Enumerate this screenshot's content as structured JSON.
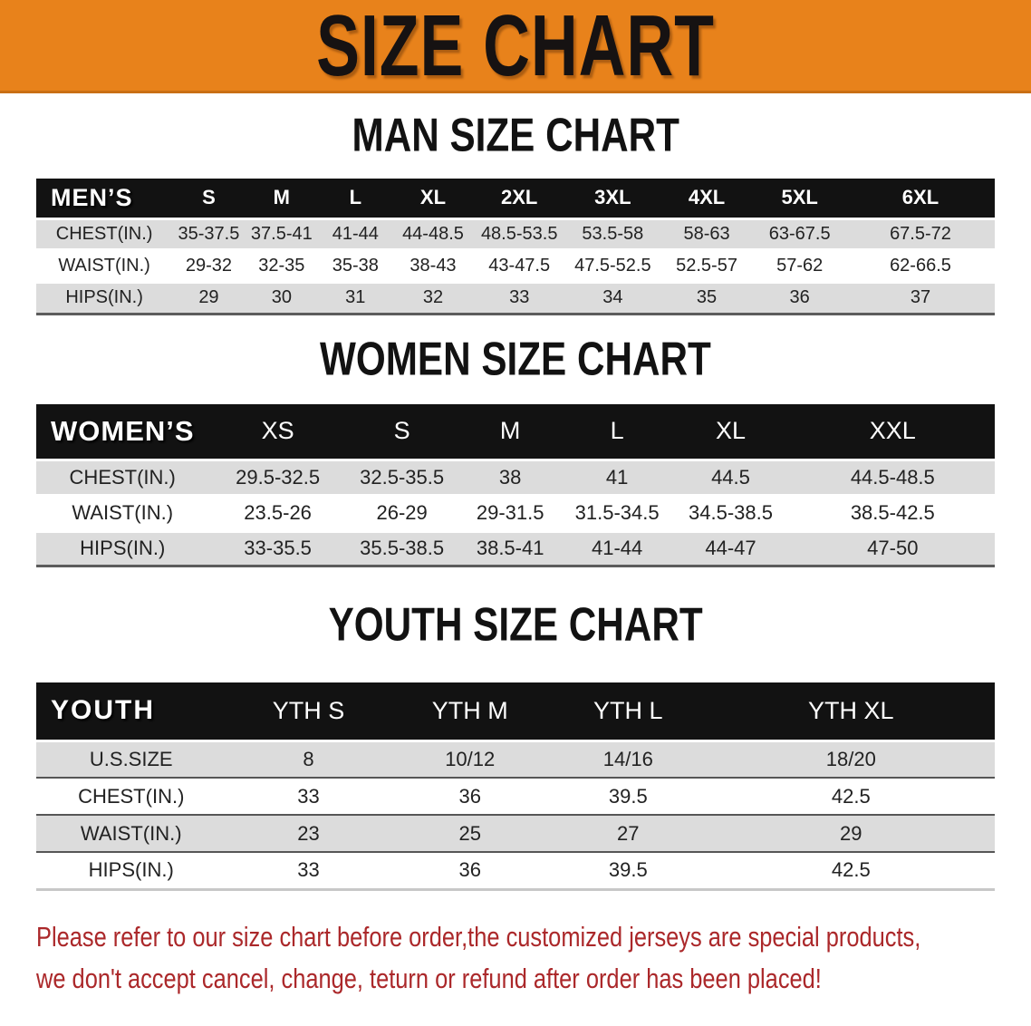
{
  "banner": {
    "title": "SIZE CHART"
  },
  "sections": [
    {
      "heading": "MAN SIZE CHART",
      "corner_label": "MEN’S",
      "columns": [
        "S",
        "M",
        "L",
        "XL",
        "2XL",
        "3XL",
        "4XL",
        "5XL",
        "6XL"
      ],
      "rows": [
        {
          "label": "CHEST(IN.)",
          "values": [
            "35-37.5",
            "37.5-41",
            "41-44",
            "44-48.5",
            "48.5-53.5",
            "53.5-58",
            "58-63",
            "63-67.5",
            "67.5-72"
          ]
        },
        {
          "label": "WAIST(IN.)",
          "values": [
            "29-32",
            "32-35",
            "35-38",
            "38-43",
            "43-47.5",
            "47.5-52.5",
            "52.5-57",
            "57-62",
            "62-66.5"
          ]
        },
        {
          "label": "HIPS(IN.)",
          "values": [
            "29",
            "30",
            "31",
            "32",
            "33",
            "34",
            "35",
            "36",
            "37"
          ]
        }
      ]
    },
    {
      "heading": "WOMEN SIZE CHART",
      "corner_label": "WOMEN’S",
      "columns": [
        "XS",
        "S",
        "M",
        "L",
        "XL",
        "XXL"
      ],
      "rows": [
        {
          "label": "CHEST(IN.)",
          "values": [
            "29.5-32.5",
            "32.5-35.5",
            "38",
            "41",
            "44.5",
            "44.5-48.5"
          ]
        },
        {
          "label": "WAIST(IN.)",
          "values": [
            "23.5-26",
            "26-29",
            "29-31.5",
            "31.5-34.5",
            "34.5-38.5",
            "38.5-42.5"
          ]
        },
        {
          "label": "HIPS(IN.)",
          "values": [
            "33-35.5",
            "35.5-38.5",
            "38.5-41",
            "41-44",
            "44-47",
            "47-50"
          ]
        }
      ]
    },
    {
      "heading": "YOUTH SIZE CHART",
      "corner_label": "YOUTH",
      "columns": [
        "YTH S",
        "YTH M",
        "YTH L",
        "YTH XL"
      ],
      "rows": [
        {
          "label": "U.S.SIZE",
          "values": [
            "8",
            "10/12",
            "14/16",
            "18/20"
          ]
        },
        {
          "label": "CHEST(IN.)",
          "values": [
            "33",
            "36",
            "39.5",
            "42.5"
          ]
        },
        {
          "label": "WAIST(IN.)",
          "values": [
            "23",
            "25",
            "27",
            "29"
          ]
        },
        {
          "label": "HIPS(IN.)",
          "values": [
            "33",
            "36",
            "39.5",
            "42.5"
          ]
        }
      ]
    }
  ],
  "disclaimer": {
    "line1": "Please refer to our size chart before order,the customized jerseys are special products,",
    "line2": "we don't accept cancel, change, teturn or refund after order has been placed!"
  },
  "colors": {
    "banner_bg": "#E8821B",
    "header_bar": "#121212",
    "row_alt": "#DCDCDC",
    "disclaimer_text": "#AB282A"
  }
}
